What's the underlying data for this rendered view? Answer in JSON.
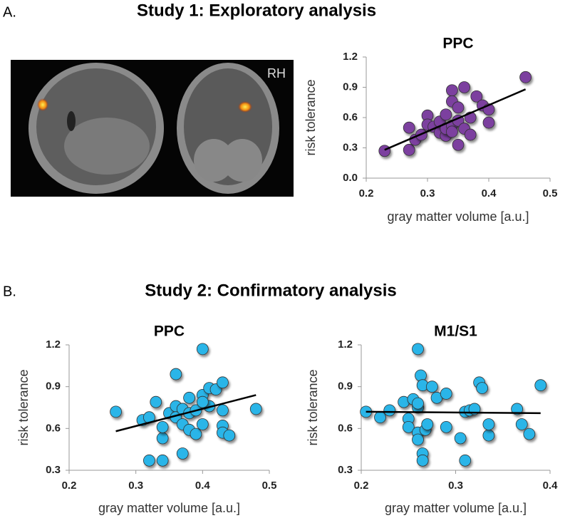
{
  "panels": [
    {
      "label": "A.",
      "title": "Study 1: Exploratory analysis"
    },
    {
      "label": "B.",
      "title": "Study 2: Confirmatory analysis"
    }
  ],
  "image_label": "RH",
  "chart_data": [
    {
      "type": "scatter",
      "title": "PPC",
      "x_label": "gray matter volume [a.u.]",
      "y_label": "risk tolerance",
      "color": "#7b3f9f",
      "x": [
        0.23,
        0.27,
        0.27,
        0.28,
        0.29,
        0.3,
        0.3,
        0.31,
        0.32,
        0.32,
        0.33,
        0.33,
        0.33,
        0.34,
        0.34,
        0.34,
        0.34,
        0.35,
        0.35,
        0.35,
        0.36,
        0.36,
        0.37,
        0.37,
        0.38,
        0.39,
        0.4,
        0.4,
        0.46
      ],
      "y": [
        0.27,
        0.28,
        0.5,
        0.38,
        0.43,
        0.62,
        0.53,
        0.51,
        0.45,
        0.56,
        0.42,
        0.49,
        0.63,
        0.87,
        0.76,
        0.52,
        0.46,
        0.7,
        0.57,
        0.33,
        0.9,
        0.49,
        0.43,
        0.6,
        0.81,
        0.72,
        0.68,
        0.55,
        1.0
      ],
      "fit": {
        "x": [
          0.23,
          0.46
        ],
        "y": [
          0.28,
          0.88
        ]
      },
      "xlim": [
        0.2,
        0.5
      ],
      "xticks": [
        0.2,
        0.3,
        0.4,
        0.5
      ],
      "ylim": [
        0.0,
        1.2
      ],
      "yticks": [
        {
          "value": 0,
          "label": "0.0"
        },
        0.3,
        0.6,
        0.9,
        1.2
      ]
    },
    {
      "type": "scatter",
      "title": "PPC",
      "x_label": "gray matter volume [a.u.]",
      "y_label": "risk tolerance",
      "color": "#29b5e8",
      "x": [
        0.27,
        0.31,
        0.32,
        0.32,
        0.33,
        0.34,
        0.34,
        0.34,
        0.35,
        0.36,
        0.36,
        0.36,
        0.37,
        0.37,
        0.37,
        0.38,
        0.38,
        0.38,
        0.39,
        0.39,
        0.4,
        0.4,
        0.4,
        0.41,
        0.41,
        0.42,
        0.43,
        0.43,
        0.43,
        0.43,
        0.44,
        0.48,
        0.4
      ],
      "y": [
        0.72,
        0.66,
        0.68,
        0.37,
        0.79,
        0.37,
        0.53,
        0.61,
        0.71,
        0.76,
        0.99,
        0.68,
        0.42,
        0.74,
        0.63,
        0.59,
        0.82,
        0.71,
        0.56,
        0.73,
        1.17,
        0.63,
        0.84,
        0.89,
        0.76,
        0.88,
        0.93,
        0.62,
        0.73,
        0.57,
        0.55,
        0.74,
        0.79
      ],
      "fit": {
        "x": [
          0.27,
          0.48
        ],
        "y": [
          0.58,
          0.84
        ]
      },
      "xlim": [
        0.2,
        0.5
      ],
      "xticks": [
        0.2,
        0.3,
        0.4,
        0.5
      ],
      "ylim": [
        0.3,
        1.2
      ],
      "yticks": [
        0.3,
        0.6,
        0.9,
        1.2
      ]
    },
    {
      "type": "scatter",
      "title": "M1/S1",
      "x_label": "gray matter volume [a.u.]",
      "y_label": "risk tolerance",
      "color": "#29b5e8",
      "x": [
        0.205,
        0.22,
        0.23,
        0.245,
        0.25,
        0.25,
        0.255,
        0.26,
        0.26,
        0.26,
        0.26,
        0.26,
        0.263,
        0.265,
        0.265,
        0.265,
        0.268,
        0.27,
        0.275,
        0.28,
        0.29,
        0.29,
        0.305,
        0.31,
        0.31,
        0.315,
        0.32,
        0.325,
        0.328,
        0.335,
        0.335,
        0.365,
        0.37,
        0.378,
        0.39
      ],
      "y": [
        0.72,
        0.68,
        0.73,
        0.79,
        0.67,
        0.61,
        0.81,
        0.57,
        1.17,
        0.75,
        0.52,
        0.78,
        0.98,
        0.91,
        0.42,
        0.37,
        0.59,
        0.63,
        0.9,
        0.82,
        0.85,
        0.61,
        0.53,
        0.37,
        0.72,
        0.73,
        0.74,
        0.93,
        0.89,
        0.55,
        0.63,
        0.74,
        0.63,
        0.56,
        0.91
      ],
      "fit": {
        "x": [
          0.205,
          0.39
        ],
        "y": [
          0.72,
          0.71
        ]
      },
      "xlim": [
        0.2,
        0.4
      ],
      "xticks": [
        0.2,
        0.3,
        0.4
      ],
      "ylim": [
        0.3,
        1.2
      ],
      "yticks": [
        0.3,
        0.6,
        0.9,
        1.2
      ]
    }
  ]
}
